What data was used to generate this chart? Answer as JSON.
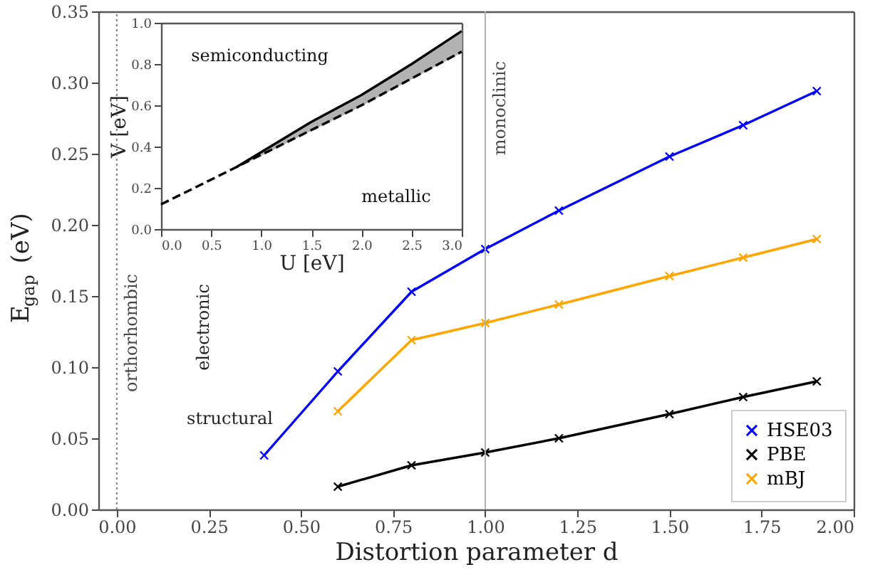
{
  "chart_data": [
    {
      "type": "line",
      "xlabel": "Distortion parameter d",
      "ylabel": "E$_{gap}$ (eV)",
      "x": [
        0.4,
        0.6,
        0.8,
        1.0,
        1.2,
        1.5,
        1.7,
        1.9
      ],
      "series": [
        {
          "name": "HSE03",
          "color": "#0000ff",
          "values": [
            0.038,
            0.097,
            0.153,
            0.183,
            0.21,
            0.248,
            0.27,
            0.294
          ]
        },
        {
          "name": "PBE",
          "color": "#000000",
          "values": [
            null,
            0.016,
            0.031,
            0.04,
            0.05,
            0.067,
            0.079,
            0.09
          ]
        },
        {
          "name": "mBJ",
          "color": "#ffa500",
          "values": [
            null,
            0.069,
            0.119,
            0.131,
            0.144,
            0.164,
            0.177,
            0.19
          ]
        }
      ],
      "xlim": [
        -0.05,
        2.0
      ],
      "xticks": [
        {
          "value": 0,
          "label": "0.00"
        },
        {
          "value": 0.25,
          "label": "0.25"
        },
        {
          "value": 0.5,
          "label": "0.50"
        },
        {
          "value": 0.75,
          "label": "0.75"
        },
        {
          "value": 1.0,
          "label": "1.00"
        },
        {
          "value": 1.25,
          "label": "1.25"
        },
        {
          "value": 1.5,
          "label": "1.50"
        },
        {
          "value": 1.75,
          "label": "1.75"
        },
        {
          "value": 2.0,
          "label": "2.00"
        }
      ],
      "ylim": [
        0,
        0.35
      ],
      "yticks": [
        {
          "value": 0,
          "label": "0.00"
        },
        {
          "value": 0.05,
          "label": "0.05"
        },
        {
          "value": 0.1,
          "label": "0.10"
        },
        {
          "value": 0.15,
          "label": "0.15"
        },
        {
          "value": 0.2,
          "label": "0.20"
        },
        {
          "value": 0.25,
          "label": "0.25"
        },
        {
          "value": 0.3,
          "label": "0.30"
        },
        {
          "value": 0.35,
          "label": "0.35"
        }
      ],
      "ref_lines": [
        {
          "axis": "x",
          "value": 0,
          "label": "orthorhombic",
          "color": "#808080",
          "line_style": "dotted"
        },
        {
          "axis": "x",
          "value": 1.0,
          "label": "monoclinic",
          "color": "#b0b0b0",
          "line_style": "solid"
        }
      ],
      "annotations": [
        "electronic",
        "structural"
      ],
      "marker": "cross",
      "line_style": "solid",
      "grid": false,
      "legend": "bottom right"
    },
    {
      "type": "line",
      "xlabel": "U [eV]",
      "ylabel": "V [eV]",
      "series": [
        {
          "color": "#000000",
          "line_style": "solid",
          "x": [
            0.75,
            1.5,
            2.0,
            2.5,
            3.0
          ],
          "values": [
            0.3,
            0.52,
            0.65,
            0.8,
            0.96
          ],
          "lower": [
            0.3,
            0.48,
            0.6,
            0.73,
            0.86
          ],
          "upper": [
            0.3,
            0.52,
            0.65,
            0.8,
            0.96
          ]
        },
        {
          "color": "#000000",
          "line_style": "dashed",
          "x": [
            0.0,
            0.75,
            1.5,
            2.0,
            2.5,
            3.0
          ],
          "values": [
            0.12,
            0.3,
            0.48,
            0.6,
            0.73,
            0.86
          ]
        }
      ],
      "xlim": [
        0,
        3.0
      ],
      "xticks": [
        {
          "value": 0,
          "label": "0.0"
        },
        {
          "value": 0.5,
          "label": "0.5"
        },
        {
          "value": 1.0,
          "label": "1.0"
        },
        {
          "value": 1.5,
          "label": "1.5"
        },
        {
          "value": 2.0,
          "label": "2.0"
        },
        {
          "value": 2.5,
          "label": "2.5"
        },
        {
          "value": 3.0,
          "label": "3.0"
        }
      ],
      "ylim": [
        0,
        1.0
      ],
      "yticks": [
        {
          "value": 0,
          "label": "0.0"
        },
        {
          "value": 0.2,
          "label": "0.2"
        },
        {
          "value": 0.4,
          "label": "0.4"
        },
        {
          "value": 0.6,
          "label": "0.6"
        },
        {
          "value": 0.8,
          "label": "0.8"
        },
        {
          "value": 1.0,
          "label": "1.0"
        }
      ],
      "annotations": [
        "semiconducting",
        "metallic"
      ],
      "marker": "none",
      "grid": false,
      "legend": false
    }
  ]
}
